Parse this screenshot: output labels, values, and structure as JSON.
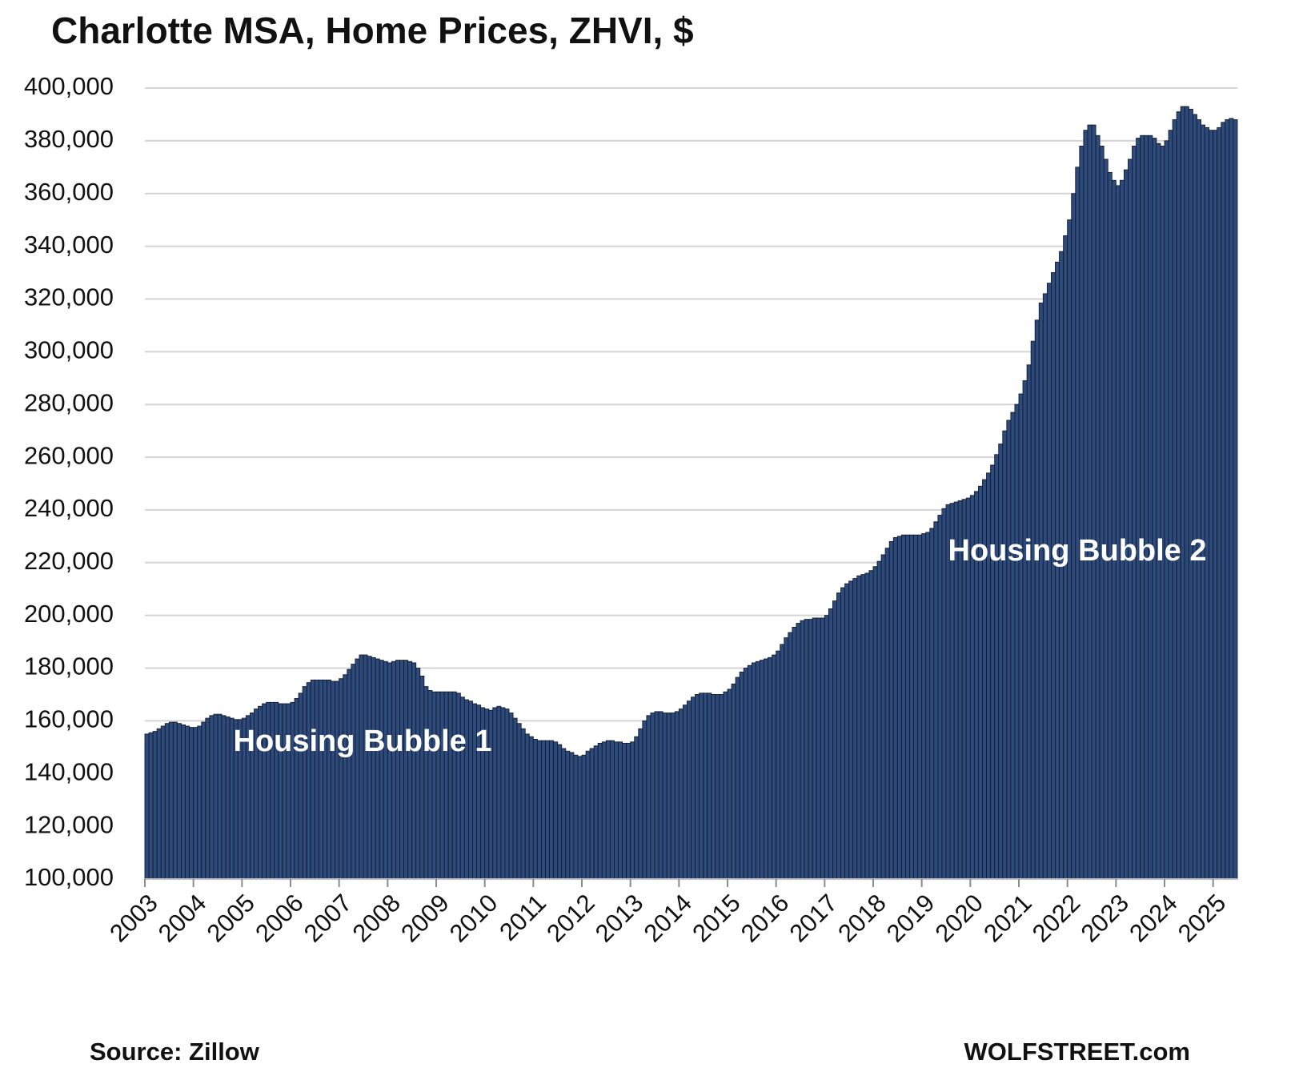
{
  "chart_data": {
    "type": "bar",
    "title": "Charlotte MSA, Home Prices, ZHVI, $",
    "color": "#2d4a7c",
    "edge_color": "#141c2c",
    "grid": true,
    "annotations": [
      "Housing Bubble 1",
      "Housing Bubble 2"
    ],
    "source": "Source: Zillow",
    "credit": "WOLFSTREET.com",
    "ylim": [
      100000,
      400000
    ],
    "yticks": [
      {
        "value": 100000,
        "label": "100,000"
      },
      {
        "value": 120000,
        "label": "120,000"
      },
      {
        "value": 140000,
        "label": "140,000"
      },
      {
        "value": 160000,
        "label": "160,000"
      },
      {
        "value": 180000,
        "label": "180,000"
      },
      {
        "value": 200000,
        "label": "200,000"
      },
      {
        "value": 220000,
        "label": "220,000"
      },
      {
        "value": 240000,
        "label": "240,000"
      },
      {
        "value": 260000,
        "label": "260,000"
      },
      {
        "value": 280000,
        "label": "280,000"
      },
      {
        "value": 300000,
        "label": "300,000"
      },
      {
        "value": 320000,
        "label": "320,000"
      },
      {
        "value": 340000,
        "label": "340,000"
      },
      {
        "value": 360000,
        "label": "360,000"
      },
      {
        "value": 380000,
        "label": "380,000"
      },
      {
        "value": 400000,
        "label": "400,000"
      }
    ],
    "categories": [
      "2003",
      null,
      null,
      null,
      null,
      null,
      null,
      null,
      null,
      null,
      null,
      null,
      "2004",
      null,
      null,
      null,
      null,
      null,
      null,
      null,
      null,
      null,
      null,
      null,
      "2005",
      null,
      null,
      null,
      null,
      null,
      null,
      null,
      null,
      null,
      null,
      null,
      "2006",
      null,
      null,
      null,
      null,
      null,
      null,
      null,
      null,
      null,
      null,
      null,
      "2007",
      null,
      null,
      null,
      null,
      null,
      null,
      null,
      null,
      null,
      null,
      null,
      "2008",
      null,
      null,
      null,
      null,
      null,
      null,
      null,
      null,
      null,
      null,
      null,
      "2009",
      null,
      null,
      null,
      null,
      null,
      null,
      null,
      null,
      null,
      null,
      null,
      "2010",
      null,
      null,
      null,
      null,
      null,
      null,
      null,
      null,
      null,
      null,
      null,
      "2011",
      null,
      null,
      null,
      null,
      null,
      null,
      null,
      null,
      null,
      null,
      null,
      "2012",
      null,
      null,
      null,
      null,
      null,
      null,
      null,
      null,
      null,
      null,
      null,
      "2013",
      null,
      null,
      null,
      null,
      null,
      null,
      null,
      null,
      null,
      null,
      null,
      "2014",
      null,
      null,
      null,
      null,
      null,
      null,
      null,
      null,
      null,
      null,
      null,
      "2015",
      null,
      null,
      null,
      null,
      null,
      null,
      null,
      null,
      null,
      null,
      null,
      "2016",
      null,
      null,
      null,
      null,
      null,
      null,
      null,
      null,
      null,
      null,
      null,
      "2017",
      null,
      null,
      null,
      null,
      null,
      null,
      null,
      null,
      null,
      null,
      null,
      "2018",
      null,
      null,
      null,
      null,
      null,
      null,
      null,
      null,
      null,
      null,
      null,
      "2019",
      null,
      null,
      null,
      null,
      null,
      null,
      null,
      null,
      null,
      null,
      null,
      "2020",
      null,
      null,
      null,
      null,
      null,
      null,
      null,
      null,
      null,
      null,
      null,
      "2021",
      null,
      null,
      null,
      null,
      null,
      null,
      null,
      null,
      null,
      null,
      null,
      "2022",
      null,
      null,
      null,
      null,
      null,
      null,
      null,
      null,
      null,
      null,
      null,
      "2023",
      null,
      null,
      null,
      null,
      null,
      null,
      null,
      null,
      null,
      null,
      null,
      "2024",
      null,
      null,
      null,
      null,
      null,
      null,
      null,
      null,
      null,
      null,
      null,
      "2025",
      null,
      null,
      null,
      null,
      null
    ],
    "values": [
      155000,
      155500,
      156000,
      157000,
      158000,
      159000,
      159500,
      159500,
      159000,
      158500,
      158000,
      157500,
      157500,
      158000,
      159500,
      161000,
      162000,
      162500,
      162500,
      162000,
      161500,
      161000,
      160500,
      160500,
      161000,
      162000,
      163000,
      164500,
      165500,
      166500,
      167000,
      167000,
      167000,
      166500,
      166500,
      166500,
      167000,
      168500,
      170500,
      173000,
      174500,
      175500,
      175500,
      175500,
      175500,
      175500,
      175000,
      175000,
      176000,
      177500,
      179500,
      181500,
      183500,
      185000,
      185000,
      184500,
      184000,
      183500,
      183000,
      182500,
      182000,
      182500,
      183000,
      183000,
      183000,
      182500,
      182000,
      180000,
      177000,
      173000,
      171500,
      171000,
      171000,
      171000,
      171000,
      171000,
      171000,
      170500,
      169000,
      168000,
      167500,
      166500,
      166000,
      165000,
      164500,
      164000,
      165000,
      165500,
      165000,
      164500,
      163000,
      161000,
      159000,
      157000,
      155000,
      154000,
      153000,
      152500,
      152500,
      152500,
      152500,
      152000,
      151000,
      149500,
      148500,
      148000,
      147000,
      146500,
      147000,
      148500,
      149500,
      150500,
      151500,
      152000,
      152500,
      152500,
      152000,
      152000,
      151500,
      151500,
      152000,
      154000,
      157000,
      160000,
      162000,
      163000,
      163500,
      163500,
      163000,
      163000,
      163000,
      163500,
      164500,
      166000,
      167500,
      169000,
      170000,
      170500,
      170500,
      170500,
      170000,
      170000,
      170000,
      171000,
      172000,
      174000,
      176500,
      178500,
      180000,
      181000,
      182000,
      182500,
      183000,
      183500,
      184000,
      185000,
      186500,
      189000,
      191500,
      193500,
      195500,
      197000,
      198000,
      198500,
      198500,
      199000,
      199000,
      199000,
      200000,
      202500,
      205500,
      208500,
      210500,
      212000,
      213000,
      214000,
      215000,
      215500,
      216000,
      217000,
      218500,
      220500,
      223000,
      225500,
      228000,
      229500,
      230000,
      230500,
      230500,
      230500,
      230500,
      230500,
      231000,
      231500,
      233000,
      235500,
      238000,
      240500,
      242000,
      242500,
      243000,
      243500,
      244000,
      244500,
      245500,
      247000,
      249000,
      251500,
      254000,
      257000,
      261000,
      265000,
      270000,
      274000,
      277000,
      280000,
      284000,
      289000,
      295000,
      304000,
      312000,
      318500,
      322000,
      326000,
      330000,
      334000,
      338000,
      344000,
      350000,
      360000,
      370000,
      378000,
      384000,
      386000,
      386000,
      382000,
      378000,
      373000,
      368000,
      365000,
      363000,
      365000,
      369000,
      373000,
      378000,
      381000,
      382000,
      382000,
      382000,
      381000,
      379000,
      378000,
      380000,
      384000,
      388000,
      391000,
      393000,
      393000,
      392000,
      390000,
      388000,
      386000,
      385000,
      384000,
      384000,
      385000,
      387000,
      388000,
      388500,
      388000
    ]
  }
}
